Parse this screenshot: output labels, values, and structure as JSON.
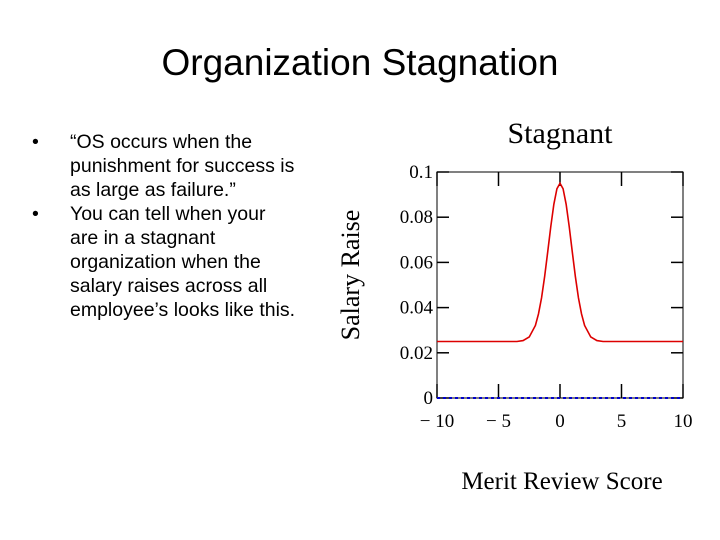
{
  "title": "Organization Stagnation",
  "bullets": [
    "“OS occurs when the punishment for success is as large as failure.”",
    "You can tell when your are in a stagnant organization when the salary raises across all employee’s looks like this."
  ],
  "chart_data": {
    "type": "line",
    "title": "Stagnant",
    "x_label": "Merit Review Score",
    "y_label": "Salary Raise",
    "x": [
      -10,
      -8,
      -6,
      -4,
      -3.5,
      -3,
      -2.5,
      -2,
      -1.75,
      -1.5,
      -1.25,
      -1,
      -0.75,
      -0.5,
      -0.25,
      0,
      0.25,
      0.5,
      0.75,
      1,
      1.25,
      1.5,
      1.75,
      2,
      2.5,
      3,
      3.5,
      4,
      6,
      8,
      10
    ],
    "series": [
      {
        "color": "#dd0000",
        "dashed": false,
        "values": [
          0.025,
          0.025,
          0.025,
          0.025,
          0.025,
          0.0254,
          0.027,
          0.0321,
          0.0372,
          0.0443,
          0.0537,
          0.0646,
          0.0758,
          0.0857,
          0.0926,
          0.095,
          0.0926,
          0.0857,
          0.0758,
          0.0646,
          0.0537,
          0.0443,
          0.0372,
          0.0321,
          0.027,
          0.0254,
          0.025,
          0.025,
          0.025,
          0.025,
          0.025
        ]
      },
      {
        "color": "#0000cc",
        "dashed": true,
        "values": [
          0,
          0,
          0,
          0,
          0,
          0,
          0,
          0,
          0,
          0,
          0,
          0,
          0,
          0,
          0,
          0,
          0,
          0,
          0,
          0,
          0,
          0,
          0,
          0,
          0,
          0,
          0,
          0,
          0,
          0,
          0
        ]
      }
    ],
    "xlim": [
      -10,
      10
    ],
    "xticks": [
      {
        "value": -10,
        "label": "− 10"
      },
      {
        "value": -5,
        "label": "− 5"
      },
      0,
      5,
      10
    ],
    "ylim": [
      0,
      0.1
    ],
    "yticks": [
      0,
      0.02,
      0.04,
      0.06,
      0.08,
      0.1
    ],
    "grid": false
  }
}
